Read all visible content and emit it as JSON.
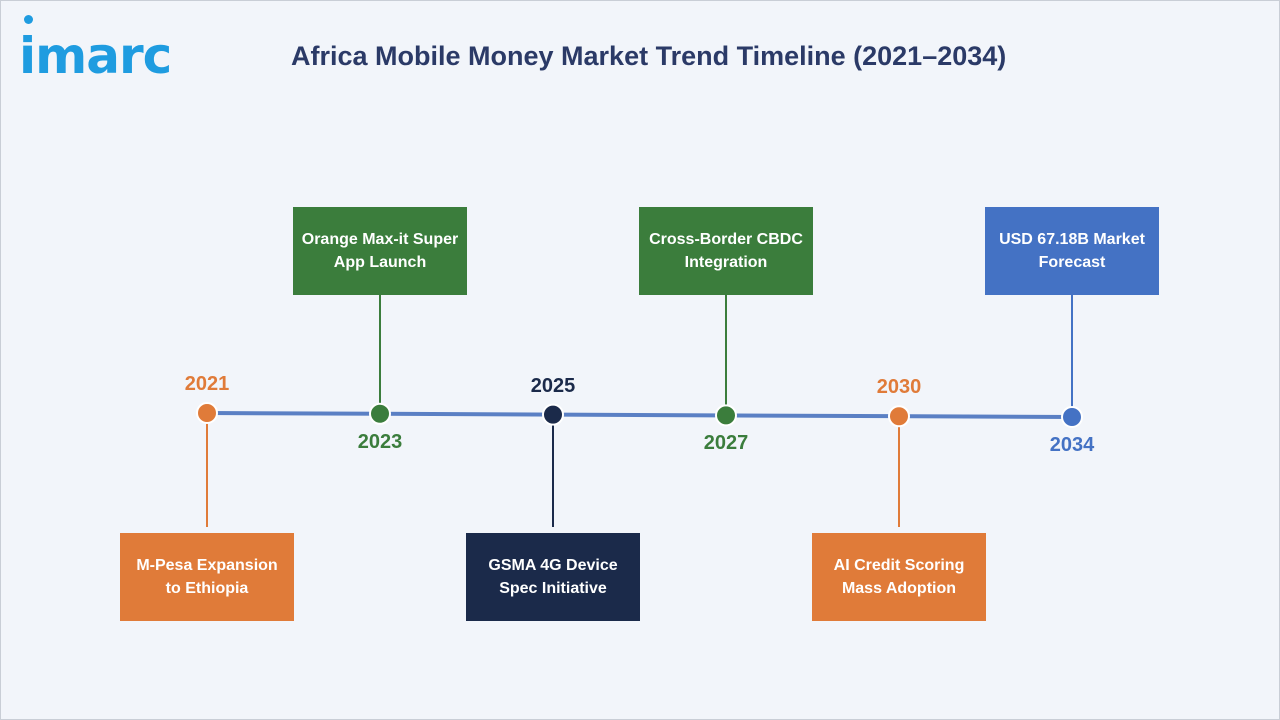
{
  "brand": {
    "logo_text": "imarc"
  },
  "title": "Africa Mobile Money Market Trend Timeline (2021–2034)",
  "colors": {
    "orange": "#e07b39",
    "green": "#3b7d3c",
    "navy": "#1b2a4a",
    "blue": "#4472c4",
    "line": "#5b80c4"
  },
  "milestones": [
    {
      "year": "2021",
      "event": "M-Pesa Expansion to Ethiopia",
      "color": "#e07b39",
      "label_side": "above",
      "box_side": "below"
    },
    {
      "year": "2023",
      "event": "Orange Max-it Super App Launch",
      "color": "#3b7d3c",
      "label_side": "below",
      "box_side": "above"
    },
    {
      "year": "2025",
      "event": "GSMA 4G Device Spec Initiative",
      "color": "#1b2a4a",
      "label_side": "above",
      "box_side": "below"
    },
    {
      "year": "2027",
      "event": "Cross-Border CBDC Integration",
      "color": "#3b7d3c",
      "label_side": "below",
      "box_side": "above"
    },
    {
      "year": "2030",
      "event": "AI Credit Scoring Mass Adoption",
      "color": "#e07b39",
      "label_side": "above",
      "box_side": "below"
    },
    {
      "year": "2034",
      "event": "USD 67.18B Market Forecast",
      "color": "#4472c4",
      "label_side": "below",
      "box_side": "above"
    }
  ]
}
